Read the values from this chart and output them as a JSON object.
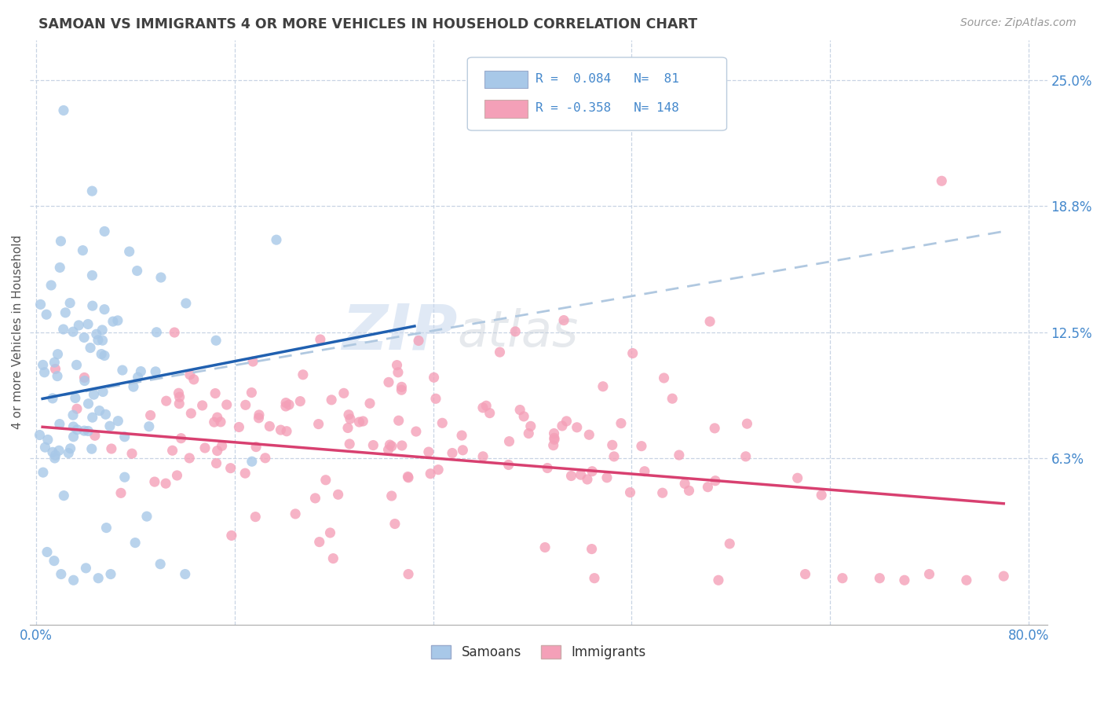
{
  "title": "SAMOAN VS IMMIGRANTS 4 OR MORE VEHICLES IN HOUSEHOLD CORRELATION CHART",
  "source": "Source: ZipAtlas.com",
  "ylabel": "4 or more Vehicles in Household",
  "xmin": 0.0,
  "xmax": 0.8,
  "ymin": -0.02,
  "ymax": 0.27,
  "ytick_vals": [
    0.0,
    0.0625,
    0.125,
    0.1875,
    0.25
  ],
  "ytick_labels": [
    "",
    "6.3%",
    "12.5%",
    "18.8%",
    "25.0%"
  ],
  "xtick_vals": [
    0.0,
    0.16,
    0.32,
    0.48,
    0.64,
    0.8
  ],
  "xtick_labels": [
    "0.0%",
    "",
    "",
    "",
    "",
    "80.0%"
  ],
  "blue_color": "#a8c8e8",
  "pink_color": "#f4a0b8",
  "trend_blue_color": "#2060b0",
  "trend_pink_color": "#d84070",
  "dashed_line_color": "#b0c8e0",
  "watermark": "ZIPatlas",
  "watermark_blue": "#c8d8ee",
  "watermark_gray": "#c8d0d8",
  "background_color": "#ffffff",
  "grid_color": "#c8d4e4",
  "title_color": "#404040",
  "axis_label_color": "#4488cc",
  "legend_text_color": "#4488cc",
  "blue_trend_x": [
    0.005,
    0.305
  ],
  "blue_trend_y": [
    0.092,
    0.128
  ],
  "dashed_trend_x": [
    0.005,
    0.78
  ],
  "dashed_trend_y": [
    0.092,
    0.175
  ],
  "pink_trend_x": [
    0.005,
    0.78
  ],
  "pink_trend_y": [
    0.078,
    0.04
  ]
}
